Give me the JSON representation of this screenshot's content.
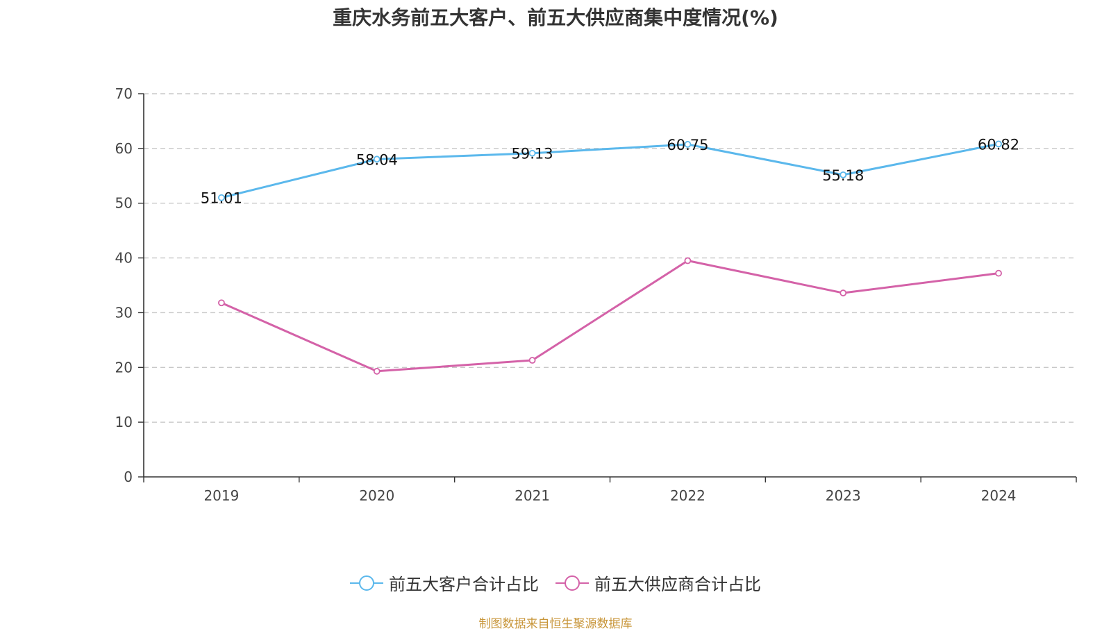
{
  "title": "重庆水务前五大客户、前五大供应商集中度情况(%)",
  "source": "制图数据来自恒生聚源数据库",
  "chart_data": {
    "type": "line",
    "title": "重庆水务前五大客户、前五大供应商集中度情况(%)",
    "categories": [
      "2019",
      "2020",
      "2021",
      "2022",
      "2023",
      "2024"
    ],
    "ylim": [
      0,
      70
    ],
    "yticks": [
      0,
      10,
      20,
      30,
      40,
      50,
      60,
      70
    ],
    "grid": true,
    "legend_position": "bottom",
    "series": [
      {
        "name": "前五大客户合计占比",
        "color": "#5bb8ec",
        "values": [
          51.01,
          58.04,
          59.13,
          60.75,
          55.18,
          60.82
        ],
        "labels": [
          "51.01",
          "58.04",
          "59.13",
          "60.75",
          "55.18",
          "60.82"
        ],
        "show_labels": true
      },
      {
        "name": "前五大供应商合计占比",
        "color": "#d462a8",
        "values": [
          31.8,
          19.3,
          21.3,
          39.5,
          33.6,
          37.2
        ],
        "show_labels": false
      }
    ]
  }
}
